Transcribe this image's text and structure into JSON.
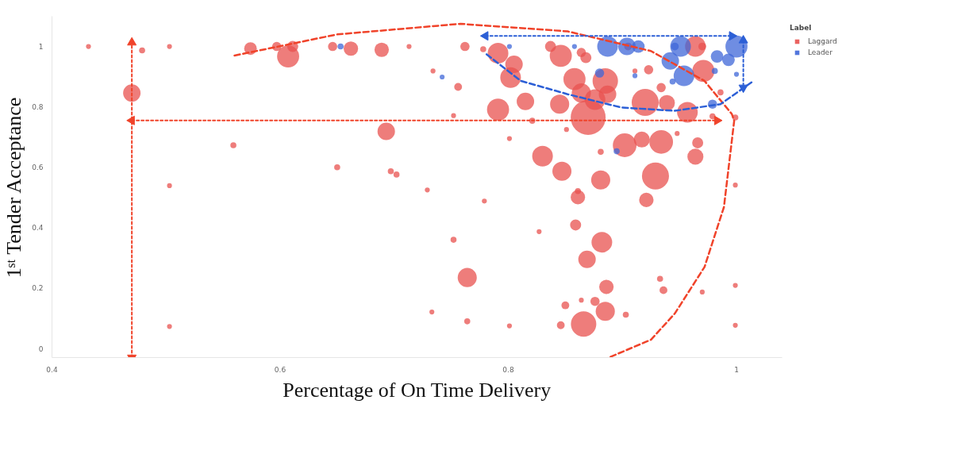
{
  "chart_data": {
    "type": "bubble",
    "xlabel": "Percentage of On Time Delivery",
    "ylabel": "1ˢᵗ Tender Acceptance",
    "legend_title": "Label",
    "legend": "top right",
    "grid": false,
    "xlim": [
      0.4,
      1.04
    ],
    "xticks": [
      0.4,
      0.6,
      0.8,
      1
    ],
    "ylim": [
      -0.03,
      1.1
    ],
    "yticks": [
      0,
      0.2,
      0.4,
      0.6,
      0.8,
      1
    ],
    "series": [
      {
        "name": "Laggard",
        "color": "#e8524f",
        "marker": "circle",
        "x": [
          0.432,
          0.479,
          0.503,
          0.47,
          0.574,
          0.607,
          0.597,
          0.611,
          0.646,
          0.662,
          0.689,
          0.713,
          0.734,
          0.756,
          0.762,
          0.778,
          0.693,
          0.559,
          0.65,
          0.697,
          0.702,
          0.729,
          0.503,
          0.503,
          0.791,
          0.805,
          0.802,
          0.791,
          0.815,
          0.821,
          0.837,
          0.846,
          0.864,
          0.868,
          0.858,
          0.864,
          0.845,
          0.876,
          0.885,
          0.887,
          0.87,
          0.923,
          0.934,
          0.92,
          0.939,
          0.957,
          0.964,
          0.97,
          0.971,
          0.986,
          0.979,
          0.999,
          0.905,
          0.911,
          0.752,
          0.801,
          0.851,
          0.948,
          0.902,
          0.917,
          0.934,
          0.83,
          0.881,
          0.966,
          0.964,
          0.847,
          0.881,
          0.929,
          0.861,
          0.861,
          0.921,
          0.779,
          0.999,
          0.859,
          0.827,
          0.752,
          0.882,
          0.869,
          0.764,
          0.933,
          0.936,
          0.886,
          0.97,
          0.999,
          0.85,
          0.864,
          0.876,
          0.885,
          0.903,
          0.764,
          0.801,
          0.846,
          0.866,
          0.999,
          0.733
        ],
        "values": [
          1.0,
          0.987,
          1.0,
          0.846,
          0.993,
          0.967,
          1.0,
          1.0,
          1.0,
          0.993,
          0.989,
          1.0,
          0.919,
          0.866,
          1.0,
          0.991,
          0.719,
          0.673,
          0.6,
          0.587,
          0.576,
          0.525,
          0.539,
          0.073,
          0.978,
          0.941,
          0.897,
          0.791,
          0.818,
          0.754,
          1.0,
          0.969,
          0.98,
          0.963,
          0.892,
          0.846,
          0.809,
          0.824,
          0.886,
          0.842,
          0.765,
          0.923,
          0.864,
          0.815,
          0.813,
          0.782,
          1.0,
          1.0,
          0.919,
          0.848,
          0.769,
          0.765,
          1.0,
          0.919,
          0.771,
          0.695,
          0.725,
          0.712,
          0.673,
          0.692,
          0.684,
          0.637,
          0.651,
          0.681,
          0.635,
          0.587,
          0.558,
          0.571,
          0.501,
          0.521,
          0.492,
          0.488,
          0.541,
          0.409,
          0.387,
          0.36,
          0.352,
          0.295,
          0.235,
          0.231,
          0.193,
          0.204,
          0.187,
          0.209,
          0.143,
          0.16,
          0.156,
          0.123,
          0.112,
          0.09,
          0.075,
          0.077,
          0.081,
          0.077,
          0.121
        ],
        "sizes": [
          0.02,
          0.03,
          0.02,
          0.25,
          0.13,
          0.4,
          0.07,
          0.1,
          0.07,
          0.17,
          0.17,
          0.02,
          0.02,
          0.05,
          0.07,
          0.03,
          0.25,
          0.03,
          0.03,
          0.03,
          0.03,
          0.02,
          0.02,
          0.02,
          0.35,
          0.25,
          0.35,
          0.4,
          0.25,
          0.03,
          0.1,
          0.4,
          0.07,
          0.1,
          0.4,
          0.3,
          0.3,
          0.35,
          0.53,
          0.25,
          1,
          0.07,
          0.07,
          0.6,
          0.21,
          0.35,
          0.35,
          0.05,
          0.4,
          0.03,
          0.03,
          0.03,
          0.05,
          0.02,
          0.02,
          0.02,
          0.02,
          0.02,
          0.46,
          0.21,
          0.46,
          0.35,
          0.03,
          0.1,
          0.21,
          0.3,
          0.3,
          0.6,
          0.17,
          0.03,
          0.17,
          0.02,
          0.02,
          0.1,
          0.02,
          0.03,
          0.35,
          0.25,
          0.3,
          0.03,
          0.05,
          0.17,
          0.02,
          0.02,
          0.05,
          0.02,
          0.07,
          0.3,
          0.03,
          0.03,
          0.02,
          0.05,
          0.53,
          0.02,
          0.02
        ]
      },
      {
        "name": "Leader",
        "color": "#3f67d8",
        "marker": "circle",
        "x": [
          0.653,
          0.742,
          0.801,
          0.858,
          0.887,
          0.904,
          0.914,
          0.88,
          0.911,
          0.942,
          0.946,
          0.951,
          0.954,
          0.944,
          0.983,
          0.993,
          1.0,
          0.981,
          0.979,
          0.895,
          1.0
        ],
        "values": [
          1.0,
          0.899,
          1.0,
          1.0,
          1.0,
          1.0,
          1.0,
          0.912,
          0.903,
          0.952,
          1.0,
          1.0,
          0.903,
          0.884,
          0.967,
          0.956,
          1.0,
          0.919,
          0.809,
          0.653,
          0.908
        ],
        "sizes": [
          0.03,
          0.02,
          0.02,
          0.02,
          0.35,
          0.25,
          0.13,
          0.07,
          0.02,
          0.25,
          0.05,
          0.35,
          0.35,
          0.03,
          0.13,
          0.13,
          0.4,
          0.03,
          0.07,
          0.03,
          0.02
        ]
      },
      {
        "type": "line",
        "color": "#f0432a",
        "line_style": "dashed",
        "marker": "none",
        "x": [
          0.56,
          0.65,
          0.758,
          0.852,
          0.925,
          0.972,
          0.996,
          0.998,
          0.989,
          0.972,
          0.946,
          0.925,
          0.888
        ],
        "values": [
          0.97,
          1.04,
          1.075,
          1.05,
          0.985,
          0.886,
          0.776,
          0.754,
          0.468,
          0.27,
          0.116,
          0.029,
          -0.03
        ]
      },
      {
        "type": "line",
        "color": "#2c5fd6",
        "line_style": "dashed",
        "marker": "none",
        "x": [
          0.781,
          0.811,
          0.852,
          0.899,
          0.946,
          0.986,
          1.015
        ],
        "values": [
          0.974,
          0.886,
          0.842,
          0.798,
          0.787,
          0.809,
          0.886
        ]
      },
      {
        "type": "line",
        "color": "#f0432a",
        "line_style": "dotted",
        "marker": "triangle",
        "x": [
          0.47,
          0.47
        ],
        "values": [
          -0.03,
          1.013
        ]
      },
      {
        "type": "line",
        "color": "#f0432a",
        "line_style": "dotted",
        "marker": "triangle",
        "x": [
          0.47,
          0.983
        ],
        "values": [
          0.755,
          0.755
        ]
      },
      {
        "type": "line",
        "color": "#2c5fd6",
        "line_style": "dotted",
        "marker": "triangle",
        "x": [
          0.78,
          0.996
        ],
        "values": [
          1.035,
          1.035
        ]
      },
      {
        "type": "line",
        "color": "#2c5fd6",
        "line_style": "dotted",
        "marker": "triangle",
        "x": [
          1.006,
          1.006
        ],
        "values": [
          1.02,
          0.864
        ]
      }
    ]
  }
}
